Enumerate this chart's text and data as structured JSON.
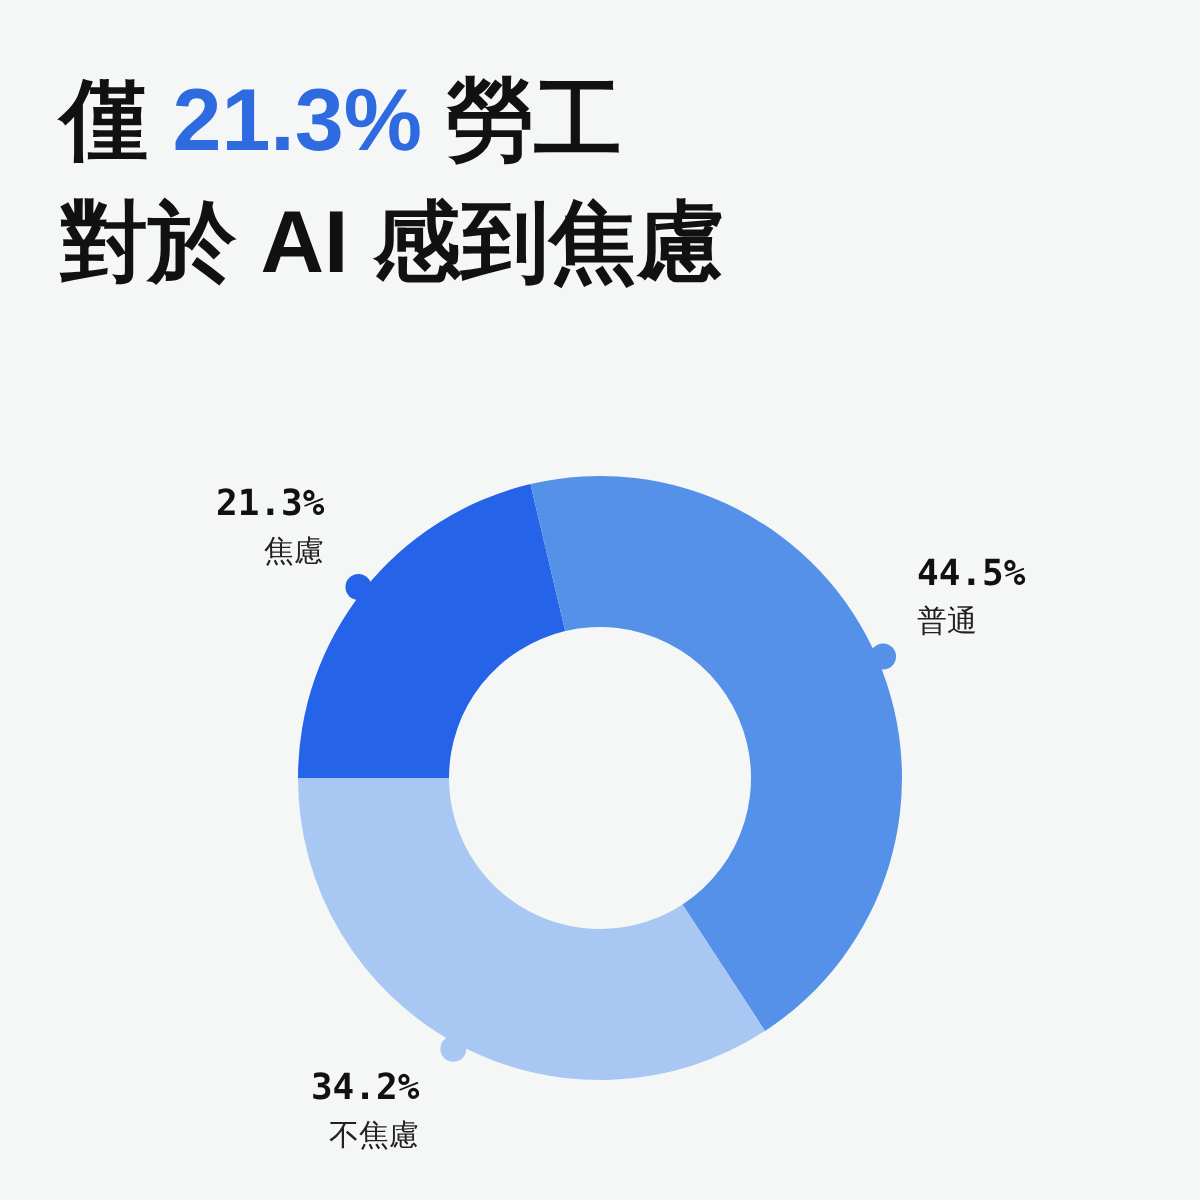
{
  "chart_data": {
    "type": "donut",
    "title": "僅 21.3% 勞工對於 AI 感到焦慮",
    "categories": [
      "焦慮",
      "普通",
      "不焦慮"
    ],
    "values": [
      21.3,
      44.5,
      34.2
    ],
    "colors": [
      "#2563e8",
      "#5591e8",
      "#a9c7f3"
    ],
    "value_labels": [
      "21.3%",
      "44.5%",
      "34.2%"
    ]
  }
}
